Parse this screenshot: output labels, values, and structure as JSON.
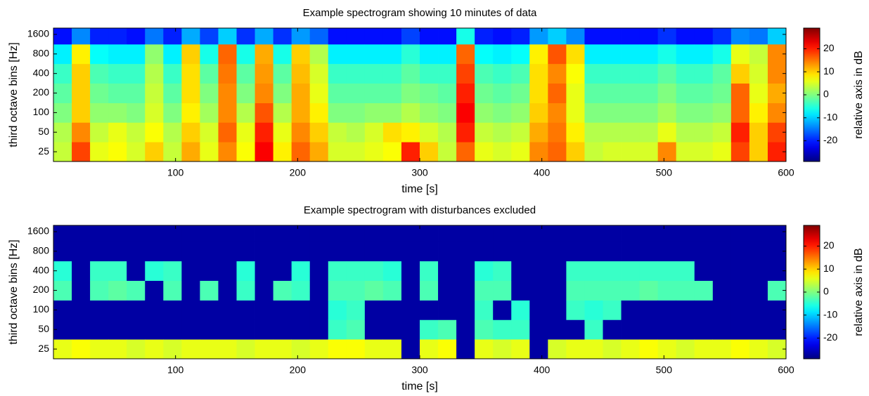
{
  "chart_data": [
    {
      "type": "heatmap",
      "title": "Example spectrogram showing 10 minutes of data",
      "xlabel": "time [s]",
      "ylabel": "third octave bins [Hz]",
      "colorbar_label": "relative axis in dB",
      "colormap": "jet",
      "xlim": [
        0,
        600
      ],
      "xticks": [
        100,
        200,
        300,
        400,
        500,
        600
      ],
      "ylim": [
        17.7,
        2000
      ],
      "yscale": "log",
      "yticks": [
        25,
        50,
        100,
        200,
        400,
        800,
        1600
      ],
      "clim": [
        -29,
        29
      ],
      "cticks": [
        -20,
        -10,
        0,
        10,
        20
      ],
      "xbins": [
        0,
        15,
        30,
        45,
        60,
        75,
        90,
        105,
        120,
        135,
        150,
        165,
        180,
        195,
        210,
        225,
        240,
        255,
        270,
        285,
        300,
        315,
        330,
        345,
        360,
        375,
        390,
        405,
        420,
        435,
        450,
        465,
        480,
        495,
        510,
        525,
        540,
        555,
        570,
        585,
        600
      ],
      "ybins": [
        17.7,
        35.4,
        70.7,
        141,
        283,
        566,
        1131,
        2000
      ],
      "z": [
        [
          4,
          3,
          0,
          -2,
          -4,
          -8,
          -21
        ],
        [
          18,
          14,
          10,
          10,
          10,
          8,
          -14
        ],
        [
          6,
          4,
          1,
          -1,
          -3,
          -7,
          -20
        ],
        [
          7,
          6,
          1,
          -2,
          -4,
          -8,
          -20
        ],
        [
          5,
          4,
          0,
          -2,
          -4,
          -8,
          -21
        ],
        [
          10,
          7,
          5,
          4,
          3,
          1,
          -15
        ],
        [
          4,
          3,
          0,
          -2,
          -4,
          -8,
          -20
        ],
        [
          12,
          10,
          8,
          9,
          9,
          10,
          -12
        ],
        [
          6,
          5,
          2,
          0,
          -2,
          -6,
          -18
        ],
        [
          14,
          16,
          14,
          14,
          15,
          16,
          -10
        ],
        [
          7,
          6,
          3,
          0,
          -2,
          -6,
          -19
        ],
        [
          22,
          20,
          17,
          14,
          13,
          12,
          -12
        ],
        [
          8,
          6,
          3,
          0,
          -2,
          -6,
          -19
        ],
        [
          16,
          14,
          12,
          12,
          11,
          10,
          -13
        ],
        [
          12,
          10,
          8,
          6,
          5,
          3,
          -16
        ],
        [
          5,
          4,
          0,
          -2,
          -4,
          -8,
          -21
        ],
        [
          5,
          3,
          0,
          -2,
          -4,
          -8,
          -21
        ],
        [
          6,
          5,
          1,
          -2,
          -4,
          -8,
          -21
        ],
        [
          7,
          9,
          1,
          -2,
          -4,
          -8,
          -21
        ],
        [
          20,
          8,
          3,
          0,
          -2,
          -5,
          -18
        ],
        [
          10,
          5,
          1,
          -1,
          -4,
          -8,
          -21
        ],
        [
          4,
          3,
          0,
          -2,
          -4,
          -8,
          -21
        ],
        [
          16,
          20,
          22,
          20,
          18,
          16,
          -6
        ],
        [
          6,
          4,
          1,
          -1,
          -3,
          -7,
          -20
        ],
        [
          5,
          3,
          0,
          -2,
          -4,
          -8,
          -21
        ],
        [
          6,
          4,
          1,
          -1,
          -3,
          -7,
          -20
        ],
        [
          14,
          12,
          10,
          9,
          9,
          8,
          -13
        ],
        [
          16,
          15,
          14,
          16,
          14,
          17,
          -10
        ],
        [
          10,
          8,
          6,
          6,
          7,
          9,
          -14
        ],
        [
          4,
          3,
          0,
          -2,
          -4,
          -8,
          -21
        ],
        [
          5,
          3,
          0,
          -2,
          -4,
          -8,
          -21
        ],
        [
          5,
          3,
          0,
          -2,
          -4,
          -8,
          -21
        ],
        [
          5,
          3,
          0,
          -2,
          -4,
          -8,
          -21
        ],
        [
          14,
          6,
          2,
          0,
          -2,
          -6,
          -19
        ],
        [
          5,
          3,
          0,
          -2,
          -4,
          -8,
          -21
        ],
        [
          5,
          3,
          0,
          -2,
          -4,
          -8,
          -21
        ],
        [
          6,
          4,
          1,
          -1,
          -2,
          -6,
          -19
        ],
        [
          18,
          20,
          16,
          16,
          10,
          6,
          -14
        ],
        [
          10,
          10,
          8,
          6,
          5,
          4,
          -15
        ],
        [
          20,
          18,
          14,
          12,
          14,
          14,
          -10
        ]
      ]
    },
    {
      "type": "heatmap",
      "title": "Example spectrogram with disturbances excluded",
      "xlabel": "time [s]",
      "ylabel": "third octave bins [Hz]",
      "colorbar_label": "relative axis in dB",
      "colormap": "jet",
      "xlim": [
        0,
        600
      ],
      "xticks": [
        100,
        200,
        300,
        400,
        500,
        600
      ],
      "ylim": [
        17.7,
        2000
      ],
      "yscale": "log",
      "yticks": [
        25,
        50,
        100,
        200,
        400,
        800,
        1600
      ],
      "clim": [
        -29,
        29
      ],
      "cticks": [
        -20,
        -10,
        0,
        10,
        20
      ],
      "xbins": [
        0,
        15,
        30,
        45,
        60,
        75,
        90,
        105,
        120,
        135,
        150,
        165,
        180,
        195,
        210,
        225,
        240,
        255,
        270,
        285,
        300,
        315,
        330,
        345,
        360,
        375,
        390,
        405,
        420,
        435,
        450,
        465,
        480,
        495,
        510,
        525,
        540,
        555,
        570,
        585,
        600
      ],
      "ybins": [
        17.7,
        35.4,
        70.7,
        141,
        283,
        566,
        1131,
        2000
      ],
      "z": [
        [
          6,
          -27,
          -27,
          -3,
          -5,
          -27,
          -27
        ],
        [
          7,
          -27,
          -27,
          -27,
          -27,
          -27,
          -27
        ],
        [
          6,
          -27,
          -27,
          -3,
          -4,
          -27,
          -27
        ],
        [
          6,
          -27,
          -27,
          -2,
          -4,
          -27,
          -27
        ],
        [
          5,
          -27,
          -27,
          -3,
          -27,
          -27,
          -27
        ],
        [
          6,
          -27,
          -27,
          -27,
          -5,
          -27,
          -27
        ],
        [
          5,
          -27,
          -27,
          -3,
          -4,
          -27,
          -27
        ],
        [
          6,
          -27,
          -27,
          -27,
          -27,
          -27,
          -27
        ],
        [
          6,
          -27,
          -27,
          -3,
          -27,
          -27,
          -27
        ],
        [
          6,
          -27,
          -27,
          -27,
          -27,
          -27,
          -27
        ],
        [
          5,
          -27,
          -27,
          -4,
          -5,
          -27,
          -27
        ],
        [
          6,
          -27,
          -27,
          -27,
          -27,
          -27,
          -27
        ],
        [
          6,
          -27,
          -27,
          -3,
          -27,
          -27,
          -27
        ],
        [
          5,
          -27,
          -27,
          -4,
          -5,
          -27,
          -27
        ],
        [
          6,
          -27,
          -27,
          -27,
          -27,
          -27,
          -27
        ],
        [
          7,
          -4,
          -5,
          -3,
          -4,
          -27,
          -27
        ],
        [
          7,
          -3,
          -4,
          -3,
          -4,
          -27,
          -27
        ],
        [
          6,
          -27,
          -27,
          -2,
          -4,
          -27,
          -27
        ],
        [
          6,
          -27,
          -27,
          -3,
          -5,
          -27,
          -27
        ],
        [
          -27,
          -27,
          -27,
          -27,
          -27,
          -27,
          -27
        ],
        [
          6,
          -4,
          -27,
          -3,
          -4,
          -27,
          -27
        ],
        [
          7,
          -3,
          -27,
          -27,
          -27,
          -27,
          -27
        ],
        [
          -27,
          -27,
          -27,
          -27,
          -27,
          -27,
          -27
        ],
        [
          6,
          -3,
          -4,
          -3,
          -5,
          -27,
          -27
        ],
        [
          5,
          -4,
          -27,
          -3,
          -4,
          -27,
          -27
        ],
        [
          6,
          -4,
          -5,
          -27,
          -27,
          -27,
          -27
        ],
        [
          -27,
          -27,
          -27,
          -27,
          -27,
          -27,
          -27
        ],
        [
          5,
          -27,
          -27,
          -27,
          -27,
          -27,
          -27
        ],
        [
          6,
          -27,
          -4,
          -3,
          -4,
          -27,
          -27
        ],
        [
          6,
          -4,
          -5,
          -3,
          -4,
          -27,
          -27
        ],
        [
          5,
          -27,
          -4,
          -3,
          -4,
          -27,
          -27
        ],
        [
          6,
          -27,
          -27,
          -3,
          -4,
          -27,
          -27
        ],
        [
          7,
          -27,
          -27,
          -2,
          -4,
          -27,
          -27
        ],
        [
          6,
          -27,
          -27,
          -3,
          -4,
          -27,
          -27
        ],
        [
          5,
          -27,
          -27,
          -3,
          -4,
          -27,
          -27
        ],
        [
          6,
          -27,
          -27,
          -3,
          -27,
          -27,
          -27
        ],
        [
          6,
          -27,
          -27,
          -27,
          -27,
          -27,
          -27
        ],
        [
          7,
          -27,
          -27,
          -27,
          -27,
          -27,
          -27
        ],
        [
          6,
          -27,
          -27,
          -27,
          -27,
          -27,
          -27
        ],
        [
          5,
          -27,
          -27,
          -3,
          -27,
          -27,
          -27
        ]
      ]
    }
  ]
}
